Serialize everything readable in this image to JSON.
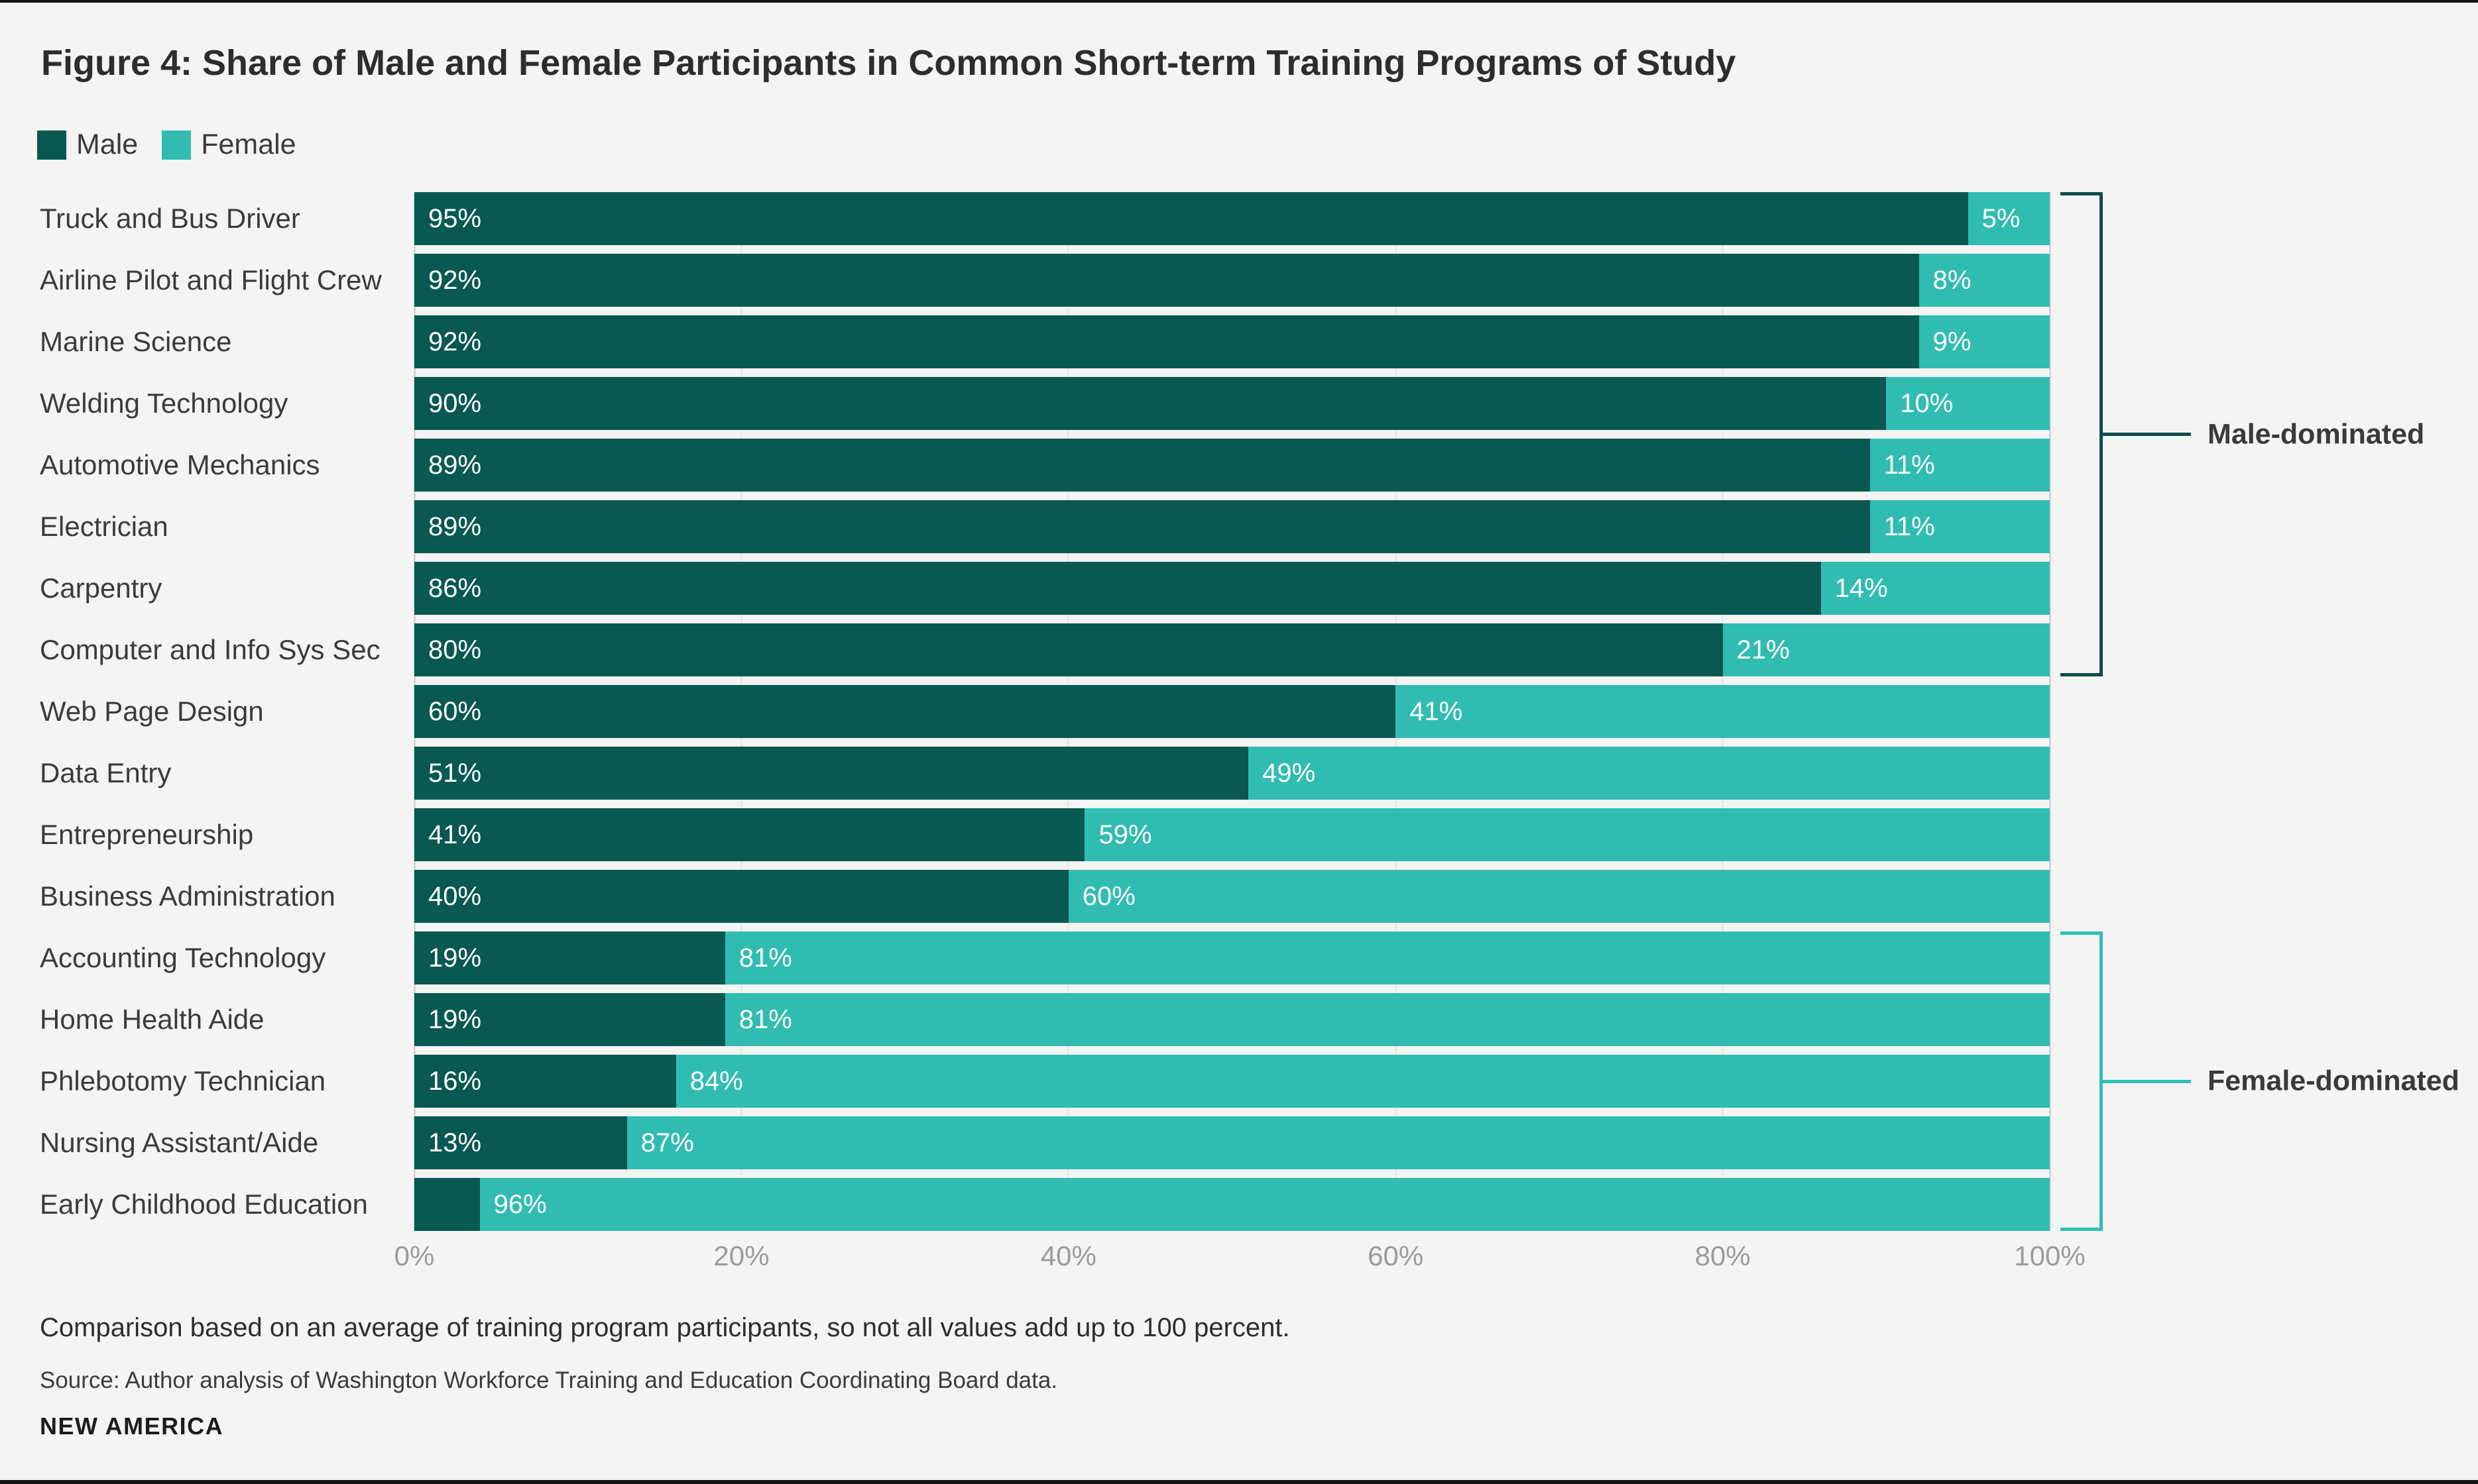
{
  "title": "Figure 4: Share of Male and Female Participants in Common Short-term Training Programs of Study",
  "legend": {
    "male_label": "Male",
    "female_label": "Female"
  },
  "colors": {
    "background": "#f4f4f4",
    "male": "#095852",
    "female": "#31bcb2",
    "male_bracket": "#0b4e4a",
    "female_bracket": "#2fc0b6",
    "axis_text": "#9b9b9b",
    "bar_label_text": "#ffffff",
    "gridline": "#e9e9e9",
    "axis_line": "#d6d6d6"
  },
  "annotations": {
    "male_group_label": "Male-dominated",
    "female_group_label": "Female-dominated"
  },
  "notes": {
    "comparison": "Comparison based on an average of training program participants, so not all values add up to 100 percent.",
    "source": "Source: Author analysis of Washington Workforce Training and Education Coordinating Board data.",
    "brand": "NEW AMERICA"
  },
  "chart_data": {
    "type": "bar",
    "orientation": "horizontal",
    "stacked": true,
    "xlim": [
      0,
      100
    ],
    "x_ticks": [
      "0%",
      "20%",
      "40%",
      "60%",
      "80%",
      "100%"
    ],
    "grid": "faint vertical lines at ticks",
    "legend_position": "top-left",
    "categories": [
      "Truck and Bus Driver",
      "Airline Pilot and Flight Crew",
      "Marine Science",
      "Welding Technology",
      "Automotive Mechanics",
      "Electrician",
      "Carpentry",
      "Computer and Info Sys Sec",
      "Web Page Design",
      "Data Entry",
      "Entrepreneurship",
      "Business Administration",
      "Accounting Technology",
      "Home Health Aide",
      "Phlebotomy Technician",
      "Nursing Assistant/Aide",
      "Early Childhood Education"
    ],
    "series": [
      {
        "name": "Male",
        "values": [
          95,
          92,
          92,
          90,
          89,
          89,
          86,
          80,
          60,
          51,
          41,
          40,
          19,
          19,
          16,
          13,
          4
        ],
        "labels": [
          "95%",
          "92%",
          "92%",
          "90%",
          "89%",
          "89%",
          "86%",
          "80%",
          "60%",
          "51%",
          "41%",
          "40%",
          "19%",
          "19%",
          "16%",
          "13%",
          ""
        ]
      },
      {
        "name": "Female",
        "values": [
          5,
          8,
          9,
          10,
          11,
          11,
          14,
          21,
          41,
          49,
          59,
          60,
          81,
          81,
          84,
          87,
          96
        ],
        "labels": [
          "5%",
          "8%",
          "9%",
          "10%",
          "11%",
          "11%",
          "14%",
          "21%",
          "41%",
          "49%",
          "59%",
          "60%",
          "81%",
          "81%",
          "84%",
          "87%",
          "96%"
        ],
        "segment_width_is_remainder_of_male": true
      }
    ],
    "groups": [
      {
        "label": "Male-dominated",
        "first_row": 0,
        "last_row": 7
      },
      {
        "label": "Female-dominated",
        "first_row": 12,
        "last_row": 16
      }
    ]
  }
}
